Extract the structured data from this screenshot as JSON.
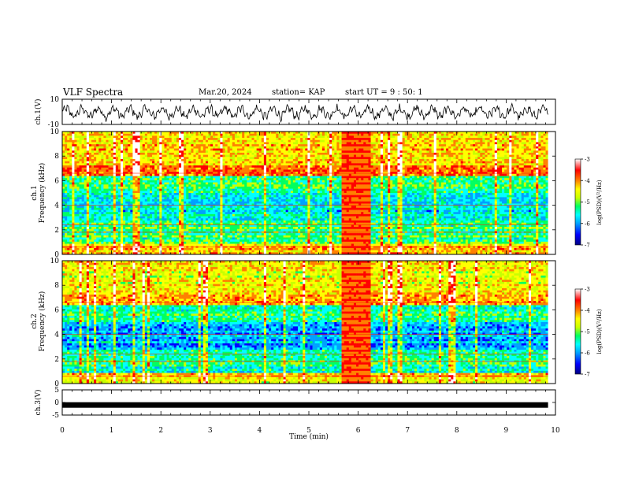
{
  "header": {
    "title": "VLF Spectra",
    "date": "Mar.20, 2024",
    "station": "station= KAP",
    "start": "start  UT =   9 : 50: 1"
  },
  "chart_data": {
    "type": "heatmap",
    "panels": [
      {
        "id": "ch1_waveform",
        "type": "line",
        "ylabel": "ch.1(V)",
        "ylim": [
          -10,
          10
        ],
        "yticks": [
          {
            "value": -10,
            "label": "-10"
          },
          {
            "value": 10,
            "label": "10"
          }
        ],
        "description_points_count_note": null
      },
      {
        "id": "ch1_spectrogram",
        "type": "heatmap",
        "ylabel_line1": "ch.1",
        "ylabel_line2": "Frequency (kHz)",
        "ylim": [
          0,
          10
        ],
        "yticks": [
          {
            "value": 0,
            "label": "0"
          },
          {
            "value": 2,
            "label": "2"
          },
          {
            "value": 4,
            "label": "4"
          },
          {
            "value": 6,
            "label": "6"
          },
          {
            "value": 8,
            "label": "8"
          },
          {
            "value": 10,
            "label": "10"
          }
        ],
        "gap_minutes": [
          5.65,
          6.25
        ]
      },
      {
        "id": "ch2_spectrogram",
        "type": "heatmap",
        "ylabel_line1": "ch.2",
        "ylabel_line2": "Frequency (kHz)",
        "ylim": [
          0,
          10
        ],
        "yticks": [
          {
            "value": 0,
            "label": "0"
          },
          {
            "value": 2,
            "label": "2"
          },
          {
            "value": 4,
            "label": "4"
          },
          {
            "value": 6,
            "label": "6"
          },
          {
            "value": 8,
            "label": "8"
          },
          {
            "value": 10,
            "label": "10"
          }
        ],
        "gap_minutes": [
          5.65,
          6.25
        ]
      },
      {
        "id": "ch3_waveform",
        "type": "line",
        "ylabel": "ch.3(V)",
        "ylim": [
          -5,
          5
        ],
        "yticks": [
          {
            "value": -5,
            "label": "-5"
          },
          {
            "value": 0,
            "label": "0"
          },
          {
            "value": 5,
            "label": "5"
          }
        ],
        "level_value": -1
      }
    ],
    "x": {
      "label": "Time (min)",
      "xlim": [
        0,
        10
      ],
      "ticks": [
        0,
        1,
        2,
        3,
        4,
        5,
        6,
        7,
        8,
        9,
        10
      ],
      "data_end": 9.85
    },
    "colorbar": {
      "label": "log(PSD)(V²/Hz)",
      "range": [
        -7,
        -3
      ],
      "ticks": [
        {
          "value": -3,
          "label": "-3"
        },
        {
          "value": -4,
          "label": "-4"
        },
        {
          "value": -5,
          "label": "-5"
        },
        {
          "value": -6,
          "label": "-6"
        },
        {
          "value": -7,
          "label": "-7"
        }
      ],
      "colors": [
        "#000080",
        "#0000ff",
        "#00a0ff",
        "#00ffff",
        "#00ff60",
        "#c8ff00",
        "#ffff00",
        "#ff8000",
        "#ff0000",
        "#ffffff"
      ]
    }
  }
}
